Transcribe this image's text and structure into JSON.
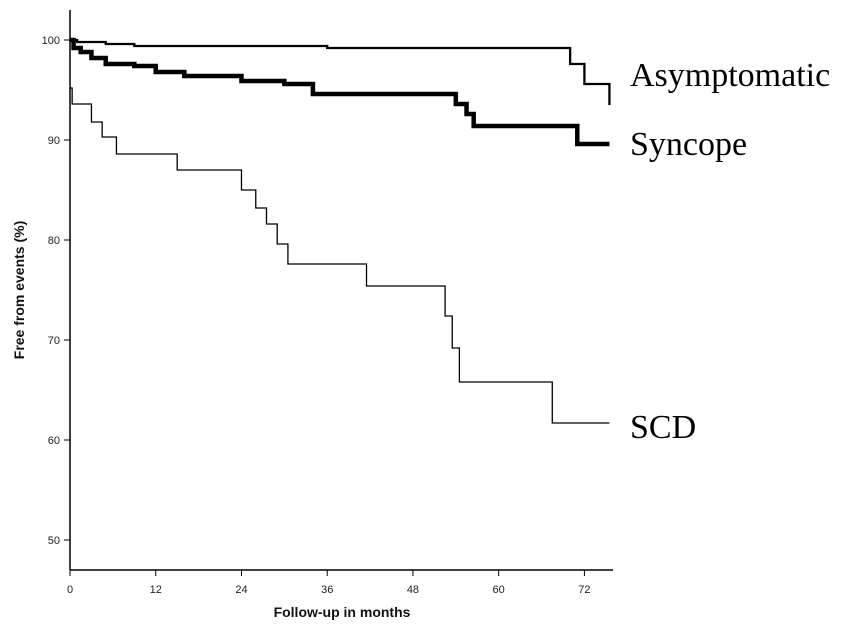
{
  "chart_data": {
    "type": "line",
    "step": true,
    "xlabel": "Follow-up in months",
    "ylabel": "Free from events (%)",
    "xlim": [
      0,
      76
    ],
    "ylim": [
      47,
      103
    ],
    "xticks": [
      0,
      12,
      24,
      36,
      48,
      60,
      72
    ],
    "yticks": [
      50,
      60,
      70,
      80,
      90,
      100
    ],
    "grid": false,
    "legend": "labels at line ends (right)",
    "series": [
      {
        "name": "Asymptomatic",
        "color": "#000000",
        "weight": "medium",
        "points": [
          [
            0,
            100
          ],
          [
            1,
            99.8
          ],
          [
            5,
            99.6
          ],
          [
            9,
            99.4
          ],
          [
            36,
            99.2
          ],
          [
            70,
            97.6
          ],
          [
            72,
            95.6
          ],
          [
            75.5,
            93.5
          ]
        ]
      },
      {
        "name": "Syncope",
        "color": "#000000",
        "weight": "thick",
        "points": [
          [
            0,
            100
          ],
          [
            0.5,
            99.2
          ],
          [
            1.5,
            98.8
          ],
          [
            3,
            98.2
          ],
          [
            5,
            97.6
          ],
          [
            9,
            97.4
          ],
          [
            12,
            96.8
          ],
          [
            16,
            96.4
          ],
          [
            24,
            95.9
          ],
          [
            30,
            95.6
          ],
          [
            34,
            94.6
          ],
          [
            54,
            93.6
          ],
          [
            55.5,
            92.6
          ],
          [
            56.5,
            91.4
          ],
          [
            71,
            89.6
          ],
          [
            75.5,
            89.6
          ]
        ]
      },
      {
        "name": "SCD",
        "color": "#000000",
        "weight": "thin",
        "points": [
          [
            0,
            95.2
          ],
          [
            0.3,
            93.6
          ],
          [
            3,
            91.8
          ],
          [
            4.5,
            90.3
          ],
          [
            6.5,
            88.6
          ],
          [
            15,
            87.0
          ],
          [
            24,
            85.0
          ],
          [
            26,
            83.2
          ],
          [
            27.5,
            81.6
          ],
          [
            29,
            79.6
          ],
          [
            30.5,
            77.6
          ],
          [
            41.5,
            75.4
          ],
          [
            52.5,
            72.4
          ],
          [
            53.5,
            69.2
          ],
          [
            54.5,
            65.8
          ],
          [
            67.5,
            61.7
          ],
          [
            75.5,
            61.7
          ]
        ]
      }
    ]
  }
}
